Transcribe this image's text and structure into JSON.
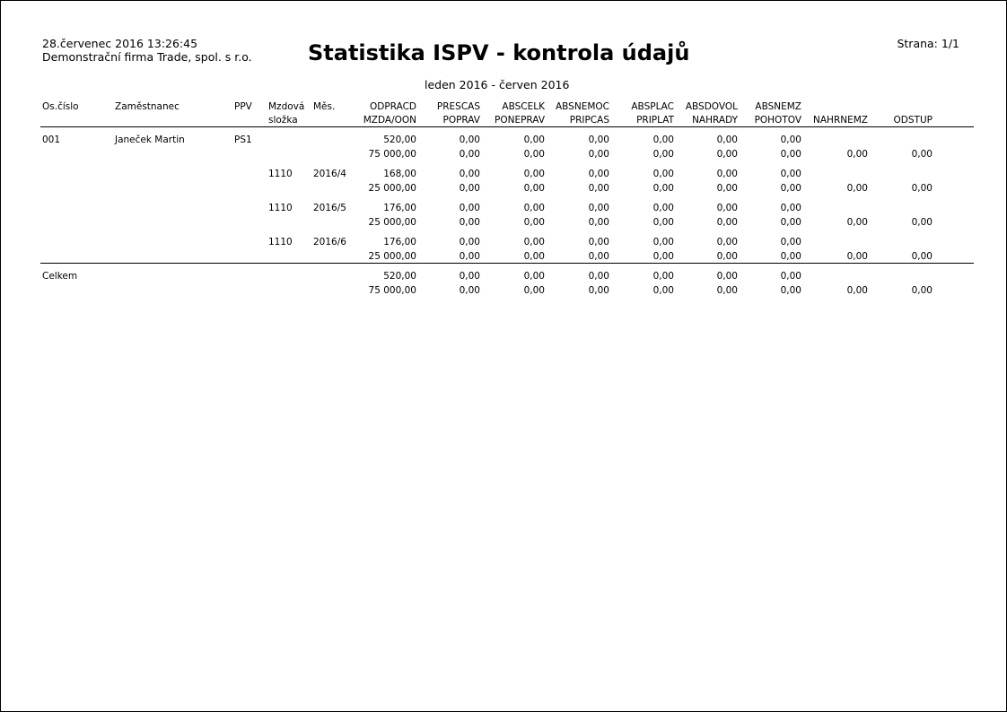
{
  "header": {
    "datetime": "28.červenec 2016  13:26:45",
    "company": "Demonstrační firma Trade, spol. s r.o.",
    "title": "Statistika ISPV - kontrola údajů",
    "page": "Strana: 1/1",
    "period": "leden 2016 - červen 2016"
  },
  "columns": {
    "os": "Os.číslo",
    "name": "Zaměstnanec",
    "ppv": "PPV",
    "slozka": [
      "Mzdová",
      "složka"
    ],
    "mes": "Měs.",
    "line1": [
      "ODPRACD",
      "PRESCAS",
      "ABSCELK",
      "ABSNEMOC",
      "ABSPLAC",
      "ABSDOVOL",
      "ABSNEMZ"
    ],
    "line2": [
      "MZDA/OON",
      "POPRAV",
      "PONEPRAV",
      "PRIPCAS",
      "PRIPLAT",
      "NAHRADY",
      "POHOTOV",
      "NAHRNEMZ",
      "ODSTUP"
    ]
  },
  "rows": [
    {
      "os": "001",
      "name": "Janeček Martin",
      "ppv": "PS1",
      "slozka": "",
      "mes": "",
      "line1": [
        "520,00",
        "0,00",
        "0,00",
        "0,00",
        "0,00",
        "0,00",
        "0,00"
      ],
      "line2": [
        "75 000,00",
        "0,00",
        "0,00",
        "0,00",
        "0,00",
        "0,00",
        "0,00",
        "0,00",
        "0,00"
      ]
    },
    {
      "os": "",
      "name": "",
      "ppv": "",
      "slozka": "1110",
      "mes": "2016/4",
      "line1": [
        "168,00",
        "0,00",
        "0,00",
        "0,00",
        "0,00",
        "0,00",
        "0,00"
      ],
      "line2": [
        "25 000,00",
        "0,00",
        "0,00",
        "0,00",
        "0,00",
        "0,00",
        "0,00",
        "0,00",
        "0,00"
      ]
    },
    {
      "os": "",
      "name": "",
      "ppv": "",
      "slozka": "1110",
      "mes": "2016/5",
      "line1": [
        "176,00",
        "0,00",
        "0,00",
        "0,00",
        "0,00",
        "0,00",
        "0,00"
      ],
      "line2": [
        "25 000,00",
        "0,00",
        "0,00",
        "0,00",
        "0,00",
        "0,00",
        "0,00",
        "0,00",
        "0,00"
      ]
    },
    {
      "os": "",
      "name": "",
      "ppv": "",
      "slozka": "1110",
      "mes": "2016/6",
      "line1": [
        "176,00",
        "0,00",
        "0,00",
        "0,00",
        "0,00",
        "0,00",
        "0,00"
      ],
      "line2": [
        "25 000,00",
        "0,00",
        "0,00",
        "0,00",
        "0,00",
        "0,00",
        "0,00",
        "0,00",
        "0,00"
      ]
    }
  ],
  "total": {
    "label": "Celkem",
    "line1": [
      "520,00",
      "0,00",
      "0,00",
      "0,00",
      "0,00",
      "0,00",
      "0,00"
    ],
    "line2": [
      "75 000,00",
      "0,00",
      "0,00",
      "0,00",
      "0,00",
      "0,00",
      "0,00",
      "0,00",
      "0,00"
    ]
  }
}
